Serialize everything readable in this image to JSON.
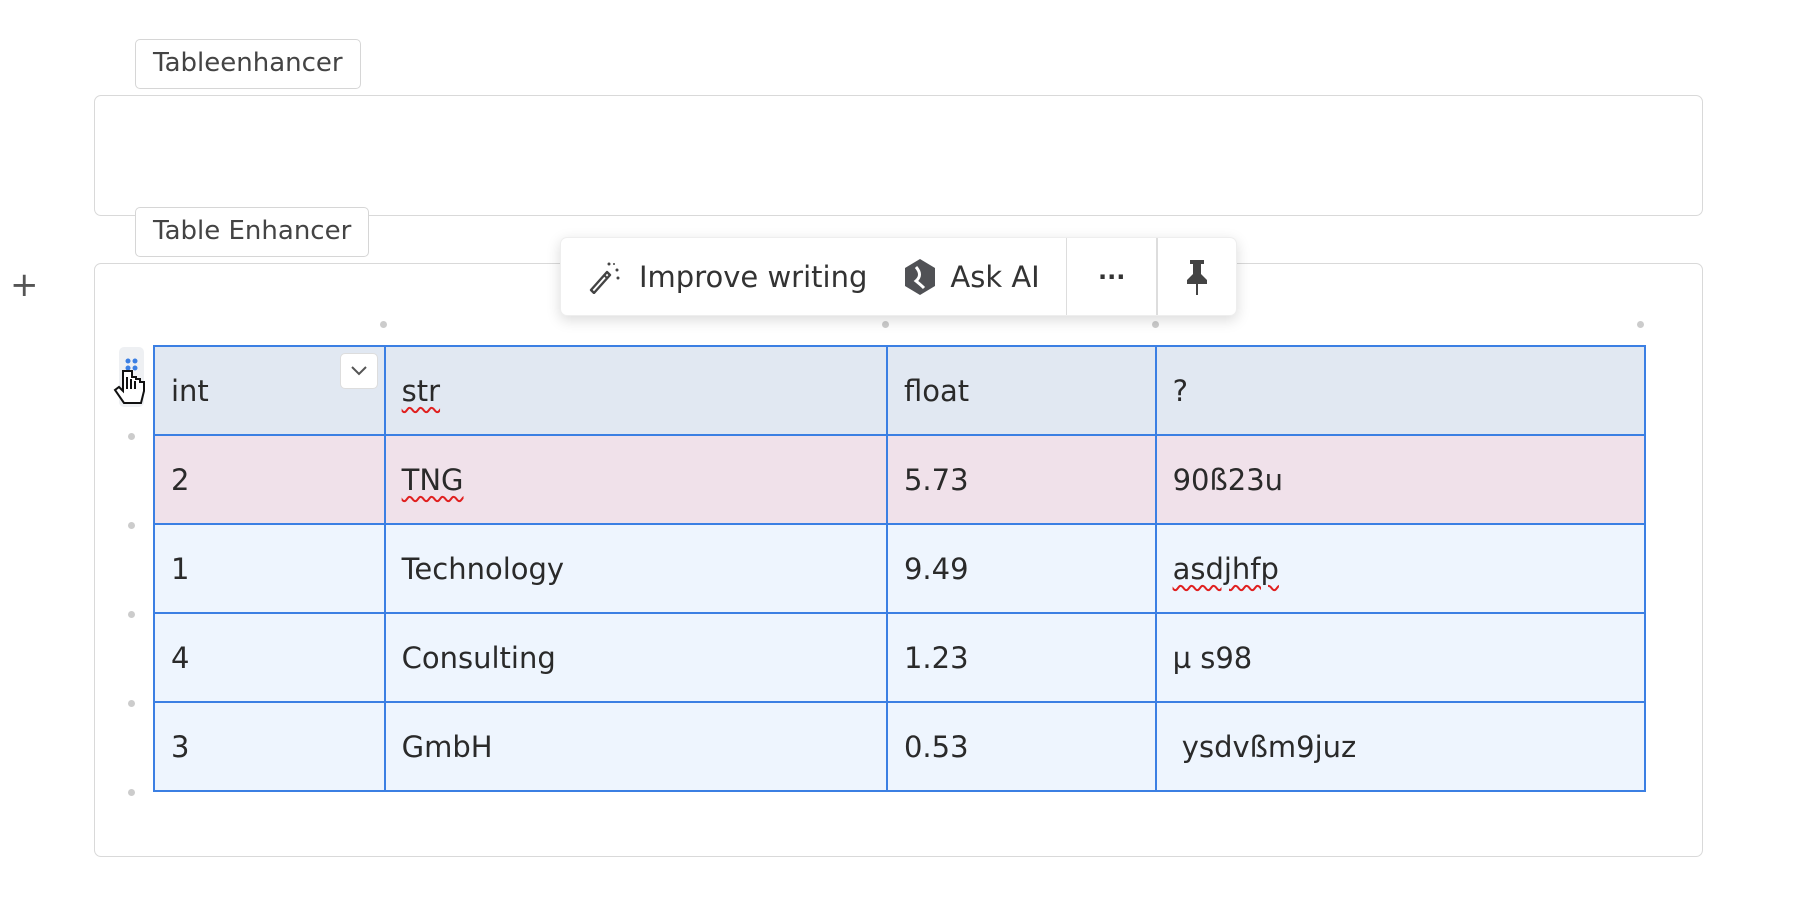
{
  "blocks": [
    {
      "label": "Tableenhancer"
    },
    {
      "label": "Table Enhancer"
    }
  ],
  "toolbar": {
    "improve_label": "Improve writing",
    "ask_label": "Ask AI",
    "more_label": "···"
  },
  "table": {
    "headers": [
      "int",
      "str",
      "float",
      "?"
    ],
    "rows": [
      [
        "2",
        "TNG",
        "5.73",
        "90ß23u"
      ],
      [
        "1",
        "Technology",
        "9.49",
        "asdjhfp"
      ],
      [
        "4",
        "Consulting",
        "1.23",
        "µ s98"
      ],
      [
        "3",
        "GmbH",
        "0.53",
        " ysdvßm9juz"
      ]
    ]
  },
  "colors": {
    "border": "#3b7fe3",
    "header_bg": "#e1e8f2",
    "highlight_row": "#f0e1ea",
    "row_bg": "#eef5fe"
  }
}
